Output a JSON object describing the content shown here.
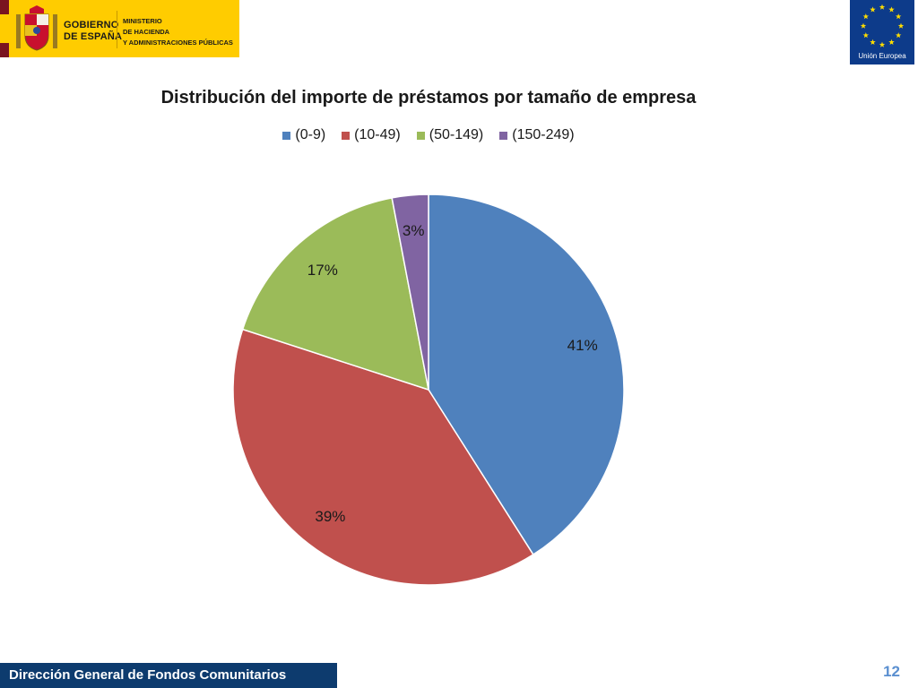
{
  "header": {
    "gov_line1": "GOBIERNO",
    "gov_line2": "DE ESPAÑA",
    "ministry_line1": "MINISTERIO",
    "ministry_line2": "DE HACIENDA",
    "ministry_line3": "Y ADMINISTRACIONES PÚBLICAS",
    "eu_label": "Unión Europea",
    "colors": {
      "gov_yellow": "#ffcc00",
      "eu_blue": "#0d3b8a",
      "eu_star": "#ffdd00"
    }
  },
  "chart_data": {
    "type": "pie",
    "title": "Distribución del importe de préstamos por tamaño de empresa",
    "legend_position": "top",
    "categories": [
      "(0-9)",
      "(10-49)",
      "(50-149)",
      "(150-249)"
    ],
    "values": [
      41,
      39,
      17,
      3
    ],
    "data_labels": [
      "41%",
      "39%",
      "17%",
      "3%"
    ],
    "colors": [
      "#4f81bd",
      "#c0504d",
      "#9bbb59",
      "#8064a2"
    ]
  },
  "footer": {
    "text": "Dirección General de Fondos Comunitarios",
    "page_number": "12"
  }
}
